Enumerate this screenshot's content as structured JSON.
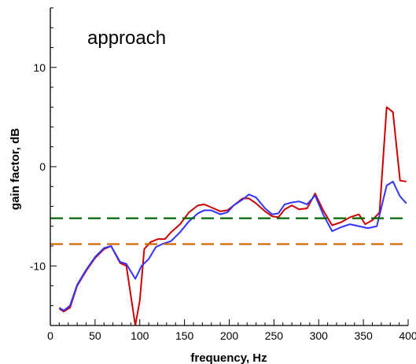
{
  "chart_data": {
    "type": "line",
    "annotation": "approach",
    "xlabel": "frequency, Hz",
    "ylabel": "gain factor, dB",
    "xlim": [
      0,
      400
    ],
    "ylim": [
      -16,
      16
    ],
    "grid": false,
    "x_ticks": [
      0,
      50,
      100,
      150,
      200,
      250,
      300,
      350,
      400
    ],
    "y_ticks": [
      -10,
      0,
      10
    ],
    "x_tick_labels": [
      "0",
      "50",
      "100",
      "150",
      "200",
      "250",
      "300",
      "350",
      "400"
    ],
    "y_tick_labels": [
      "-10",
      "0",
      "10"
    ],
    "colors": {
      "red": "#cc0000",
      "blue": "#3333ff",
      "green": "#006600",
      "orange": "#cc6600"
    },
    "series": [
      {
        "color": "#cc0000",
        "style": "solid",
        "x": [
          10,
          15,
          22,
          30,
          40,
          50,
          60,
          68,
          78,
          85,
          95,
          100,
          105,
          112,
          120,
          128,
          135,
          145,
          155,
          165,
          172,
          180,
          190,
          198,
          205,
          215,
          222,
          230,
          240,
          248,
          255,
          262,
          270,
          278,
          287,
          296,
          305,
          315,
          325,
          335,
          345,
          352,
          360,
          368,
          376,
          383,
          391,
          398
        ],
        "y": [
          -14.3,
          -14.6,
          -14.2,
          -12.0,
          -10.5,
          -9.2,
          -8.3,
          -8.0,
          -9.7,
          -10.0,
          -16.0,
          -13.5,
          -8.3,
          -7.6,
          -7.3,
          -7.3,
          -6.6,
          -5.8,
          -4.6,
          -3.9,
          -3.8,
          -4.1,
          -4.5,
          -4.4,
          -3.9,
          -3.2,
          -3.2,
          -3.7,
          -4.5,
          -5.0,
          -5.1,
          -4.3,
          -3.9,
          -4.3,
          -4.2,
          -2.7,
          -4.4,
          -5.9,
          -5.6,
          -5.1,
          -4.8,
          -5.8,
          -5.4,
          -4.6,
          6.0,
          5.5,
          -1.4,
          -1.5
        ]
      },
      {
        "color": "#3333ff",
        "style": "solid",
        "x": [
          10,
          15,
          22,
          30,
          40,
          50,
          60,
          68,
          78,
          85,
          95,
          102,
          110,
          118,
          125,
          135,
          145,
          155,
          165,
          172,
          180,
          190,
          198,
          205,
          215,
          222,
          230,
          240,
          248,
          255,
          262,
          270,
          278,
          287,
          296,
          305,
          315,
          325,
          335,
          345,
          355,
          365,
          376,
          383,
          391,
          398
        ],
        "y": [
          -14.2,
          -14.5,
          -14.0,
          -11.9,
          -10.4,
          -9.1,
          -8.2,
          -8.0,
          -9.6,
          -9.8,
          -11.3,
          -10.0,
          -9.3,
          -8.1,
          -7.8,
          -7.5,
          -6.6,
          -5.5,
          -4.7,
          -4.4,
          -4.4,
          -4.8,
          -4.6,
          -3.9,
          -3.3,
          -2.8,
          -3.1,
          -4.2,
          -4.8,
          -4.7,
          -3.8,
          -3.6,
          -3.5,
          -3.8,
          -2.9,
          -4.8,
          -6.5,
          -6.1,
          -5.8,
          -6.0,
          -6.2,
          -6.0,
          -1.9,
          -1.5,
          -3.0,
          -3.7
        ]
      },
      {
        "color": "#006600",
        "style": "dashed",
        "x": [
          0,
          400
        ],
        "y": [
          -5.2,
          -5.2
        ]
      },
      {
        "color": "#cc6600",
        "style": "dashed",
        "x": [
          0,
          400
        ],
        "y": [
          -7.8,
          -7.8
        ]
      }
    ]
  }
}
